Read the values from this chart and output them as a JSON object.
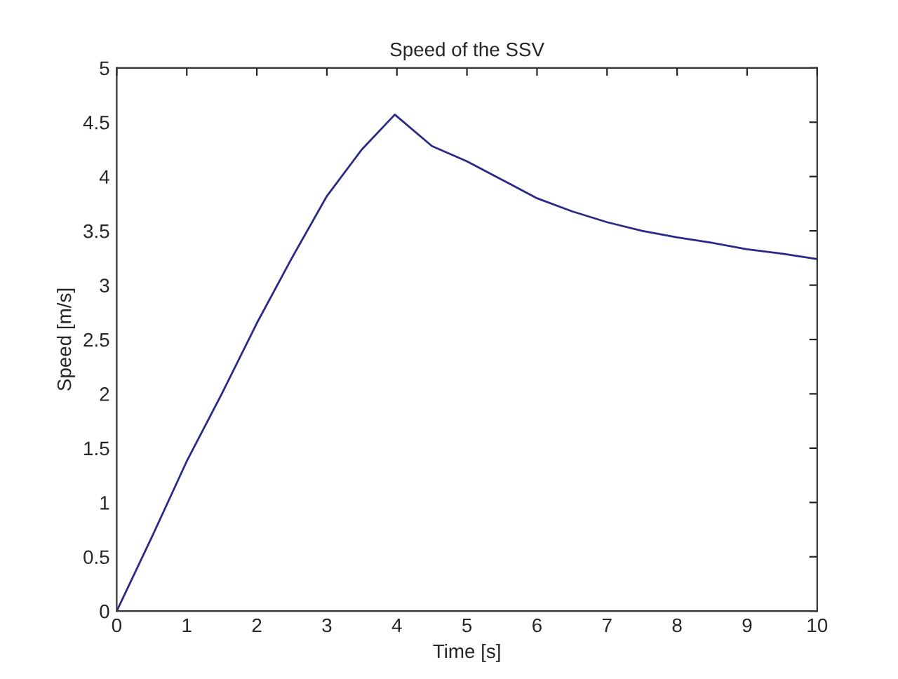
{
  "chart_data": {
    "type": "line",
    "title": "Speed of the SSV",
    "xlabel": "Time [s]",
    "ylabel": "Speed [m/s]",
    "x": [
      0,
      0.5,
      1,
      1.5,
      2,
      2.5,
      3,
      3.5,
      3.97,
      4.5,
      5,
      5.5,
      6,
      6.5,
      7,
      7.5,
      8,
      8.5,
      9,
      9.5,
      10
    ],
    "series": [
      {
        "color": "#2a2a86",
        "values": [
          0,
          0.68,
          1.38,
          2.0,
          2.65,
          3.25,
          3.82,
          4.25,
          4.57,
          4.28,
          4.14,
          3.97,
          3.8,
          3.68,
          3.58,
          3.5,
          3.44,
          3.39,
          3.33,
          3.29,
          3.24
        ]
      }
    ],
    "xlim": [
      0,
      10
    ],
    "xticks": [
      0,
      1,
      2,
      3,
      4,
      5,
      6,
      7,
      8,
      9,
      10
    ],
    "ylim": [
      0,
      5
    ],
    "yticks": [
      0,
      0.5,
      1,
      1.5,
      2,
      2.5,
      3,
      3.5,
      4,
      4.5,
      5
    ],
    "grid": false,
    "legend": false
  }
}
